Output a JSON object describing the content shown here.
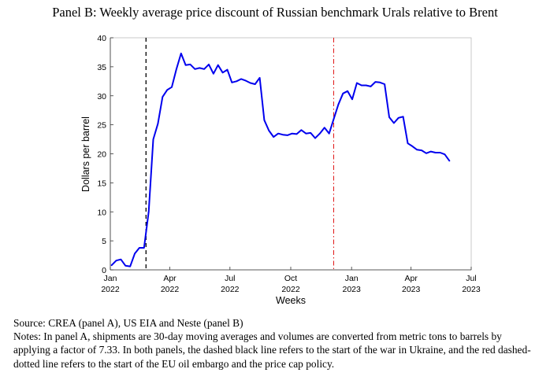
{
  "title": "Panel B: Weekly average price discount of Russian benchmark Urals relative to Brent",
  "source": "Source: CREA (panel A), US EIA and Neste (panel B)",
  "notes": "Notes: In panel A, shipments are 30-day moving averages and volumes are converted from metric tons to barrels by applying a factor of 7.33. In both panels, the dashed black line refers to the start of the war in Ukraine, and the red dashed-dotted line refers to the start of the EU oil embargo and the price cap policy.",
  "chart_data": {
    "type": "line",
    "title": "Panel B: Weekly average price discount of Russian benchmark Urals relative to Brent",
    "xlabel": "Weeks",
    "ylabel": "Dollars per barrel",
    "ylim": [
      0,
      40
    ],
    "yticks": [
      0,
      5,
      10,
      15,
      20,
      25,
      30,
      35,
      40
    ],
    "xlim": [
      "2022-01-01",
      "2023-07-01"
    ],
    "xticks": [
      {
        "date": "2022-01-01",
        "month": "Jan",
        "year": "2022"
      },
      {
        "date": "2022-04-01",
        "month": "Apr",
        "year": "2022"
      },
      {
        "date": "2022-07-01",
        "month": "Jul",
        "year": "2022"
      },
      {
        "date": "2022-10-01",
        "month": "Oct",
        "year": "2022"
      },
      {
        "date": "2023-01-01",
        "month": "Jan",
        "year": "2023"
      },
      {
        "date": "2023-04-01",
        "month": "Apr",
        "year": "2023"
      },
      {
        "date": "2023-07-01",
        "month": "Jul",
        "year": "2023"
      }
    ],
    "grid": false,
    "line_color": "#0000ee",
    "vlines": [
      {
        "date": "2022-02-24",
        "style": "dashed",
        "color": "#000000"
      },
      {
        "date": "2022-12-05",
        "style": "dashdot",
        "color": "#dd0000"
      }
    ],
    "series": [
      {
        "name": "",
        "x": [
          "2022-01-03",
          "2022-01-10",
          "2022-01-17",
          "2022-01-24",
          "2022-01-31",
          "2022-02-07",
          "2022-02-14",
          "2022-02-21",
          "2022-02-28",
          "2022-03-07",
          "2022-03-14",
          "2022-03-21",
          "2022-03-28",
          "2022-04-04",
          "2022-04-11",
          "2022-04-18",
          "2022-04-25",
          "2022-05-02",
          "2022-05-09",
          "2022-05-16",
          "2022-05-23",
          "2022-05-30",
          "2022-06-06",
          "2022-06-13",
          "2022-06-20",
          "2022-06-27",
          "2022-07-04",
          "2022-07-11",
          "2022-07-18",
          "2022-07-25",
          "2022-08-01",
          "2022-08-08",
          "2022-08-15",
          "2022-08-22",
          "2022-08-29",
          "2022-09-05",
          "2022-09-12",
          "2022-09-19",
          "2022-09-26",
          "2022-10-03",
          "2022-10-10",
          "2022-10-17",
          "2022-10-24",
          "2022-10-31",
          "2022-11-07",
          "2022-11-14",
          "2022-11-21",
          "2022-11-28",
          "2022-12-05",
          "2022-12-12",
          "2022-12-19",
          "2022-12-26",
          "2023-01-02",
          "2023-01-09",
          "2023-01-16",
          "2023-01-23",
          "2023-01-30",
          "2023-02-06",
          "2023-02-13",
          "2023-02-20",
          "2023-02-27",
          "2023-03-06",
          "2023-03-13",
          "2023-03-20",
          "2023-03-27",
          "2023-04-03",
          "2023-04-10",
          "2023-04-17",
          "2023-04-24",
          "2023-05-01",
          "2023-05-08",
          "2023-05-15",
          "2023-05-22",
          "2023-05-29"
        ],
        "values": [
          0.8,
          1.6,
          1.8,
          0.7,
          0.6,
          2.8,
          3.8,
          3.8,
          10.0,
          22.5,
          25.2,
          29.8,
          31.0,
          31.5,
          34.6,
          37.3,
          35.3,
          35.4,
          34.6,
          34.8,
          34.6,
          35.4,
          33.8,
          35.3,
          34.0,
          34.5,
          32.3,
          32.5,
          32.9,
          32.6,
          32.2,
          32.0,
          33.1,
          25.8,
          24.0,
          22.9,
          23.5,
          23.3,
          23.2,
          23.5,
          23.4,
          24.1,
          23.5,
          23.6,
          22.7,
          23.5,
          24.5,
          23.5,
          26.0,
          28.5,
          30.4,
          30.8,
          29.4,
          32.2,
          31.8,
          31.8,
          31.6,
          32.4,
          32.3,
          32.0,
          26.3,
          25.3,
          26.2,
          26.4,
          21.8,
          21.3,
          20.7,
          20.6,
          20.1,
          20.4,
          20.2,
          20.2,
          19.9,
          18.8
        ]
      }
    ]
  }
}
